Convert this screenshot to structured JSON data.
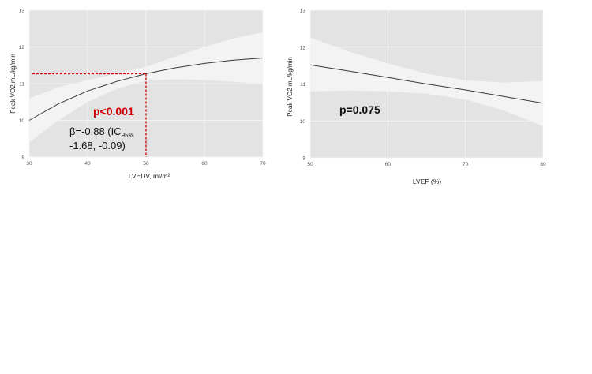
{
  "chart_data": [
    {
      "type": "line",
      "xlabel": "LVEDV, ml/m²",
      "ylabel": "Peak VO2 mL/kg/min",
      "xlim": [
        30,
        70
      ],
      "ylim": [
        9,
        13
      ],
      "xticks": [
        30,
        40,
        50,
        60,
        70
      ],
      "yticks": [
        9,
        10,
        11,
        12,
        13
      ],
      "grid": true,
      "colors": {
        "panel": "#e3e3e3",
        "grid": "#f7f7f7",
        "band": "#f3f3f3",
        "line": "#3a3a3a",
        "annotation": "#cc0000"
      },
      "series": [
        {
          "x": [
            30,
            35,
            40,
            45,
            50,
            55,
            60,
            65,
            70
          ],
          "y": [
            10.0,
            10.45,
            10.8,
            11.06,
            11.27,
            11.43,
            11.55,
            11.64,
            11.7
          ],
          "lower": [
            9.4,
            10.0,
            10.5,
            10.86,
            11.08,
            11.12,
            11.1,
            11.05,
            11.0
          ],
          "upper": [
            10.6,
            10.9,
            11.1,
            11.26,
            11.46,
            11.74,
            12.0,
            12.23,
            12.4
          ]
        }
      ],
      "reference_point": {
        "x": 50,
        "y": 11.27
      },
      "annotations": {
        "p_value": "p<0.001",
        "beta_prefix": "β=-0.88 (IC",
        "beta_subscript": "95%",
        "ci": "-1.68, -0.09)"
      }
    },
    {
      "type": "line",
      "xlabel": "LVEF (%)",
      "ylabel": "Peak VO2 mL/kg/min",
      "xlim": [
        50,
        80
      ],
      "ylim": [
        9,
        13
      ],
      "xticks": [
        50,
        60,
        70,
        80
      ],
      "yticks": [
        9,
        10,
        11,
        12,
        13
      ],
      "grid": true,
      "colors": {
        "panel": "#e3e3e3",
        "grid": "#f7f7f7",
        "band": "#f3f3f3",
        "line": "#3a3a3a"
      },
      "series": [
        {
          "x": [
            50,
            55,
            60,
            65,
            70,
            75,
            80
          ],
          "y": [
            11.52,
            11.35,
            11.18,
            11.0,
            10.84,
            10.66,
            10.48
          ],
          "lower": [
            10.8,
            10.82,
            10.8,
            10.74,
            10.58,
            10.28,
            9.86
          ],
          "upper": [
            12.26,
            11.88,
            11.56,
            11.28,
            11.1,
            11.04,
            11.08
          ]
        }
      ],
      "annotations": {
        "p_value": "p=0.075"
      }
    }
  ]
}
